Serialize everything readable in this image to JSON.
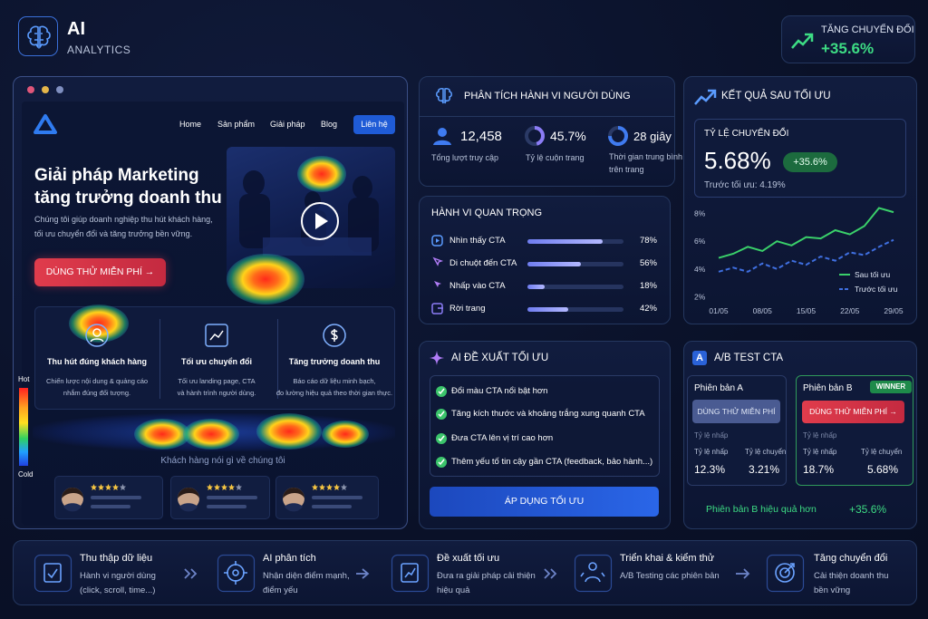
{
  "header": {
    "logo_title": "AI",
    "logo_subtitle": "ANALYTICS",
    "kpi_label": "TĂNG CHUYỂN ĐỔI",
    "kpi_value": "+35.6%"
  },
  "website": {
    "nav": [
      "Home",
      "Sản phẩm",
      "Giải pháp",
      "Blog"
    ],
    "nav_button": "Liên hệ",
    "hero_title": [
      "Giải pháp Marketing",
      "tăng trưởng doanh thu"
    ],
    "hero_text": [
      "Chúng tôi giúp doanh nghiệp thu hút khách hàng,",
      "tối ưu chuyển đổi và tăng trưởng bền vững."
    ],
    "cta": "DÙNG THỬ MIỄN PHÍ →",
    "features": [
      {
        "title": "Thu hút đúng khách hàng",
        "text": [
          "Chiến lược nội dung & quảng cáo",
          "nhắm đúng đối tượng."
        ]
      },
      {
        "title": "Tối ưu chuyển đổi",
        "text": [
          "Tối ưu landing page, CTA",
          "và hành trình người dùng."
        ]
      },
      {
        "title": "Tăng trưởng doanh thu",
        "text": [
          "Báo cáo dữ liệu minh bạch,",
          "đo lường hiệu quả theo thời gian thực."
        ]
      }
    ],
    "testimonials_title": "Khách hàng nói gì về chúng tôi",
    "heat_legend": {
      "hot": "Hot",
      "cold": "Cold"
    }
  },
  "behavior": {
    "title": "PHÂN TÍCH HÀNH VI NGƯỜI DÙNG",
    "stats": [
      {
        "value": "12,458",
        "label": [
          "Tổng lượt truy cập"
        ]
      },
      {
        "value": "45.7%",
        "percent": 45.7,
        "label": [
          "Tỷ lệ cuộn trang"
        ]
      },
      {
        "value": "28 giây",
        "label": [
          "Thời gian trung bình",
          "trên trang"
        ]
      }
    ]
  },
  "key_actions": {
    "title": "HÀNH VI QUAN TRỌNG",
    "items": [
      {
        "name": "Nhìn thấy CTA",
        "value": 78,
        "label": "78%"
      },
      {
        "name": "Di chuột đến CTA",
        "value": 56,
        "label": "56%"
      },
      {
        "name": "Nhấp vào CTA",
        "value": 18,
        "label": "18%"
      },
      {
        "name": "Rời trang",
        "value": 42,
        "label": "42%"
      }
    ]
  },
  "ai_suggest": {
    "title": "AI ĐỀ XUẤT TỐI ƯU",
    "items": [
      "Đổi màu CTA nổi bật hơn",
      "Tăng kích thước và khoảng trắng xung quanh CTA",
      "Đưa CTA lên vị trí cao hơn",
      "Thêm yếu tố tin cậy gần CTA (feedback, bảo hành...)"
    ],
    "button": "ÁP DỤNG TỐI ƯU"
  },
  "results": {
    "title": "KẾT QUẢ SAU TỐI ƯU",
    "rate_label": "TỶ LỆ CHUYỂN ĐỔI",
    "rate": "5.68%",
    "delta": "+35.6%",
    "before": "Trước tối ưu: 4.19%",
    "chart": {
      "type": "line",
      "categories": [
        "01/05",
        null,
        null,
        "08/05",
        null,
        null,
        "15/05",
        null,
        null,
        "22/05",
        null,
        null,
        "29/05"
      ],
      "series": [
        {
          "name": "Sau tối ưu",
          "color": "#3ad06a",
          "dash": false,
          "values": [
            4.8,
            5.1,
            5.6,
            5.3,
            6.0,
            5.7,
            6.3,
            6.2,
            6.8,
            6.5,
            7.1,
            8.4,
            8.1
          ]
        },
        {
          "name": "Trước tối ưu",
          "color": "#3f6fe0",
          "dash": true,
          "values": [
            3.8,
            4.1,
            3.8,
            4.4,
            4.0,
            4.6,
            4.3,
            4.9,
            4.6,
            5.2,
            5.0,
            5.6,
            6.1
          ]
        }
      ],
      "ylim": [
        1.5,
        8.5
      ],
      "yticks": [
        {
          "value": 2,
          "label": "2%"
        },
        {
          "value": 4,
          "label": "4%"
        },
        {
          "value": 6,
          "label": "6%"
        },
        {
          "value": 8,
          "label": "8%"
        }
      ],
      "grid": false
    }
  },
  "ab_test": {
    "badge": "A",
    "title": "A/B TEST CTA",
    "variants": [
      {
        "name": "Phiên bản A",
        "button": "DÙNG THỬ MIỄN PHÍ",
        "subtitle": "Tỷ lệ nhấp",
        "stats": [
          {
            "label": "Tỷ lệ nhấp",
            "value": "12.3%"
          },
          {
            "label": "Tỷ lệ chuyển",
            "value": "3.21%"
          }
        ]
      },
      {
        "name": "Phiên bản B",
        "winner": "WINNER",
        "button": "DÙNG THỬ MIỄN PHÍ →",
        "subtitle": "Tỷ lệ nhấp",
        "stats": [
          {
            "label": "Tỷ lệ nhấp",
            "value": "18.7%"
          },
          {
            "label": "Tỷ lệ chuyển",
            "value": "5.68%"
          }
        ]
      }
    ],
    "conclusion": "Phiên bản B hiệu quả hơn",
    "conclusion_value": "+35.6%"
  },
  "steps": [
    {
      "title": "Thu thập dữ liệu",
      "text": [
        "Hành vi người dùng",
        "(click, scroll, time...)"
      ]
    },
    {
      "title": "AI phân tích",
      "text": [
        "Nhận diện điểm mạnh,",
        "điểm yếu"
      ]
    },
    {
      "title": "Đề xuất tối ưu",
      "text": [
        "Đưa ra giải pháp cải thiện",
        "hiệu quả"
      ]
    },
    {
      "title": "Triển khai & kiểm thử",
      "text": [
        "A/B Testing các phiên bản"
      ]
    },
    {
      "title": "Tăng chuyển đổi",
      "text": [
        "Cải thiện doanh thu",
        "bền vững"
      ]
    }
  ]
}
